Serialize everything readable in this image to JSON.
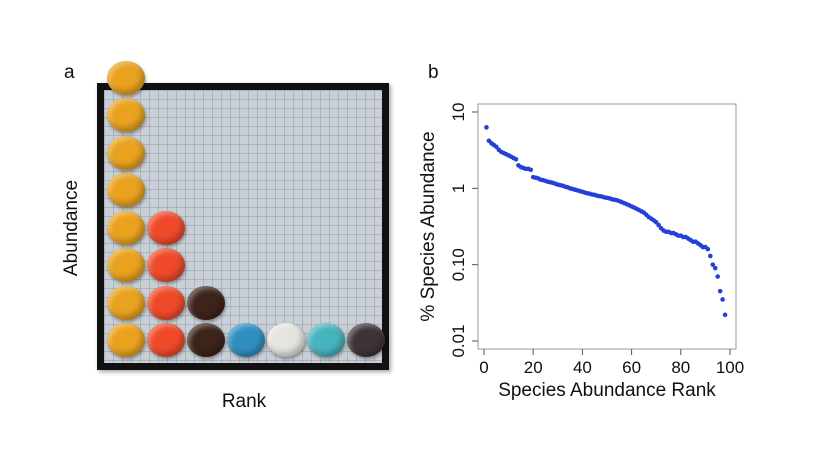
{
  "panels": {
    "a_label": "a",
    "b_label": "b"
  },
  "photo_panel": {
    "y_axis_title": "Abundance",
    "x_axis_title": "Rank",
    "columns": [
      {
        "color": "#e8a21f",
        "count": 8
      },
      {
        "color": "#ee4a2a",
        "count": 4
      },
      {
        "color": "#3d241a",
        "count": 2
      },
      {
        "color": "#2f8fc0",
        "count": 1
      },
      {
        "color": "#e4e4e0",
        "count": 1
      },
      {
        "color": "#47b3bd",
        "count": 1
      },
      {
        "color": "#3e3438",
        "count": 1
      }
    ]
  },
  "chart_data": {
    "type": "scatter",
    "title": "",
    "xlabel": "Species Abundance Rank",
    "ylabel": "% Species Abundance",
    "xlim": [
      0,
      100
    ],
    "ylim": [
      0.01,
      10
    ],
    "yscale": "log",
    "x_ticks": [
      0,
      20,
      40,
      60,
      80,
      100
    ],
    "y_ticks": [
      {
        "value": 10,
        "label": "10"
      },
      {
        "value": 1,
        "label": "1"
      },
      {
        "value": 0.1,
        "label": "0.10"
      },
      {
        "value": 0.01,
        "label": "0.01"
      }
    ],
    "series": [
      {
        "name": "species",
        "color": "#2440d8",
        "x": [
          1,
          2,
          3,
          4,
          5,
          6,
          7,
          8,
          9,
          10,
          11,
          12,
          13,
          14,
          15,
          16,
          17,
          18,
          19,
          20,
          21,
          22,
          23,
          24,
          25,
          26,
          27,
          28,
          29,
          30,
          31,
          32,
          33,
          34,
          35,
          36,
          37,
          38,
          39,
          40,
          41,
          42,
          43,
          44,
          45,
          46,
          47,
          48,
          49,
          50,
          51,
          52,
          53,
          54,
          55,
          56,
          57,
          58,
          59,
          60,
          61,
          62,
          63,
          64,
          65,
          66,
          67,
          68,
          69,
          70,
          71,
          72,
          73,
          74,
          75,
          76,
          77,
          78,
          79,
          80,
          81,
          82,
          83,
          84,
          85,
          86,
          87,
          88,
          89,
          90,
          91,
          92,
          93,
          94,
          95,
          96,
          97,
          98
        ],
        "y": [
          6.3,
          4.2,
          3.9,
          3.7,
          3.5,
          3.2,
          3.0,
          2.9,
          2.8,
          2.7,
          2.6,
          2.5,
          2.4,
          2.0,
          1.9,
          1.85,
          1.8,
          1.8,
          1.75,
          1.4,
          1.38,
          1.35,
          1.3,
          1.28,
          1.25,
          1.22,
          1.2,
          1.18,
          1.15,
          1.12,
          1.1,
          1.08,
          1.05,
          1.03,
          1.0,
          0.98,
          0.96,
          0.94,
          0.92,
          0.9,
          0.88,
          0.86,
          0.85,
          0.83,
          0.82,
          0.8,
          0.79,
          0.78,
          0.76,
          0.75,
          0.74,
          0.72,
          0.71,
          0.7,
          0.68,
          0.66,
          0.64,
          0.62,
          0.6,
          0.58,
          0.56,
          0.54,
          0.52,
          0.5,
          0.48,
          0.45,
          0.42,
          0.4,
          0.38,
          0.36,
          0.33,
          0.3,
          0.28,
          0.27,
          0.27,
          0.26,
          0.26,
          0.25,
          0.24,
          0.24,
          0.23,
          0.23,
          0.22,
          0.21,
          0.2,
          0.2,
          0.19,
          0.18,
          0.17,
          0.17,
          0.16,
          0.13,
          0.1,
          0.09,
          0.07,
          0.045,
          0.035,
          0.022
        ]
      }
    ]
  }
}
